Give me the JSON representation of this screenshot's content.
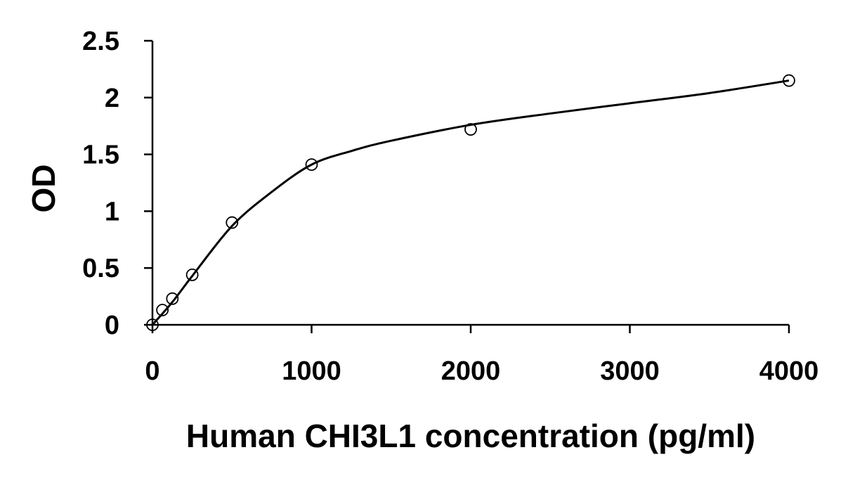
{
  "chart_data": {
    "type": "scatter",
    "title": "",
    "xlabel": "Human CHI3L1 concentration (pg/ml)",
    "ylabel": "OD",
    "xlim": [
      0,
      4000
    ],
    "ylim": [
      0,
      2.5
    ],
    "x_ticks": [
      0,
      1000,
      2000,
      3000,
      4000
    ],
    "x_tick_labels": [
      "0",
      "1000",
      "2000",
      "3000",
      "4000"
    ],
    "y_ticks": [
      0,
      0.5,
      1,
      1.5,
      2,
      2.5
    ],
    "y_tick_labels": [
      "0",
      "0.5",
      "1",
      "1.5",
      "2",
      "2.5"
    ],
    "grid": false,
    "legend": "none",
    "series": [
      {
        "points": [
          {
            "x": 0,
            "y": 0.0
          },
          {
            "x": 62.5,
            "y": 0.13
          },
          {
            "x": 125,
            "y": 0.23
          },
          {
            "x": 250,
            "y": 0.44
          },
          {
            "x": 500,
            "y": 0.9
          },
          {
            "x": 1000,
            "y": 1.41
          },
          {
            "x": 2000,
            "y": 1.72
          },
          {
            "x": 4000,
            "y": 2.15
          }
        ],
        "marker": "open-circle",
        "fit_curve": [
          {
            "x": 0,
            "y": 0.0
          },
          {
            "x": 125,
            "y": 0.2
          },
          {
            "x": 250,
            "y": 0.43
          },
          {
            "x": 500,
            "y": 0.87
          },
          {
            "x": 750,
            "y": 1.17
          },
          {
            "x": 1000,
            "y": 1.41
          },
          {
            "x": 1250,
            "y": 1.53
          },
          {
            "x": 1500,
            "y": 1.62
          },
          {
            "x": 2000,
            "y": 1.76
          },
          {
            "x": 2500,
            "y": 1.86
          },
          {
            "x": 3000,
            "y": 1.95
          },
          {
            "x": 3500,
            "y": 2.04
          },
          {
            "x": 4000,
            "y": 2.15
          }
        ]
      }
    ],
    "colors": {
      "line": "#000000",
      "marker_fill": "#ffffff",
      "axis": "#000000"
    }
  }
}
